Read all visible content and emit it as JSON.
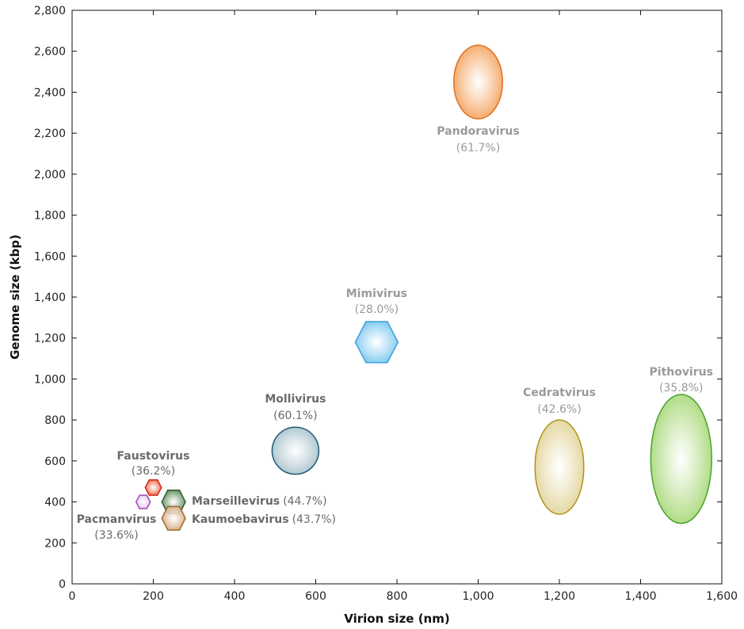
{
  "chart_data": {
    "type": "scatter",
    "title": "",
    "xlabel": "Virion size (nm)",
    "ylabel": "Genome size (kbp)",
    "xlim": [
      0,
      1600
    ],
    "ylim": [
      0,
      2800
    ],
    "xticks": [
      0,
      200,
      400,
      600,
      800,
      1000,
      1200,
      1400,
      1600
    ],
    "xtick_labels": [
      "0",
      "200",
      "400",
      "600",
      "800",
      "1,000",
      "1,200",
      "1,400",
      "1,600"
    ],
    "yticks": [
      0,
      200,
      400,
      600,
      800,
      1000,
      1200,
      1400,
      1600,
      1800,
      2000,
      2200,
      2400,
      2600,
      2800
    ],
    "ytick_labels": [
      "0",
      "200",
      "400",
      "600",
      "800",
      "1,000",
      "1,200",
      "1,400",
      "1,600",
      "1,800",
      "2,000",
      "2,200",
      "2,400",
      "2,600",
      "2,800"
    ],
    "grid": false,
    "points": [
      {
        "name": "Pandoravirus",
        "gc": "(61.7%)",
        "x": 1000,
        "y": 2450,
        "x_extent": 120,
        "y_extent": 360,
        "shape": "ellipse",
        "color": "#f4a460",
        "stroke": "#e07020",
        "label_color": "#9a9a9a"
      },
      {
        "name": "Mimivirus",
        "gc": "(28.0%)",
        "x": 750,
        "y": 1180,
        "x_extent": 105,
        "y_extent": 200,
        "shape": "hexagon",
        "color": "#7cc8f0",
        "stroke": "#3aa0dc",
        "label_color": "#9a9a9a"
      },
      {
        "name": "Mollivirus",
        "gc": "(60.1%)",
        "x": 550,
        "y": 650,
        "x_extent": 115,
        "y_extent": 230,
        "shape": "circle",
        "color": "#a9c2cd",
        "stroke": "#1e5c72",
        "label_color": "#6a6a6a"
      },
      {
        "name": "Cedratvirus",
        "gc": "(42.6%)",
        "x": 1200,
        "y": 570,
        "x_extent": 120,
        "y_extent": 460,
        "shape": "ellipse",
        "color": "#e2d49a",
        "stroke": "#b0921a",
        "label_color": "#9a9a9a"
      },
      {
        "name": "Pithovirus",
        "gc": "(35.8%)",
        "x": 1500,
        "y": 610,
        "x_extent": 150,
        "y_extent": 630,
        "shape": "ellipse",
        "color": "#a8d878",
        "stroke": "#4aa030",
        "label_color": "#9a9a9a"
      },
      {
        "name": "Faustovirus",
        "gc": "(36.2%)",
        "x": 200,
        "y": 470,
        "x_extent": 40,
        "y_extent": 75,
        "shape": "hexagon",
        "color": "#f06040",
        "stroke": "#d02810",
        "label_color": "#6a6a6a"
      },
      {
        "name": "Pacmanvirus",
        "gc": "(33.6%)",
        "x": 175,
        "y": 400,
        "x_extent": 35,
        "y_extent": 65,
        "shape": "hexagon",
        "color": "#e4c8ec",
        "stroke": "#9a4ab0",
        "label_color": "#6a6a6a"
      },
      {
        "name": "Marseillevirus",
        "gc": "(44.7%)",
        "x": 250,
        "y": 400,
        "x_extent": 58,
        "y_extent": 115,
        "shape": "hexagon",
        "color": "#5a8a5a",
        "stroke": "#2e5a2e",
        "label_color": "#6a6a6a"
      },
      {
        "name": "Kaumoebavirus",
        "gc": "(43.7%)",
        "x": 250,
        "y": 320,
        "x_extent": 58,
        "y_extent": 115,
        "shape": "hexagon",
        "color": "#d4aa80",
        "stroke": "#a06a30",
        "label_color": "#6a6a6a"
      }
    ]
  }
}
